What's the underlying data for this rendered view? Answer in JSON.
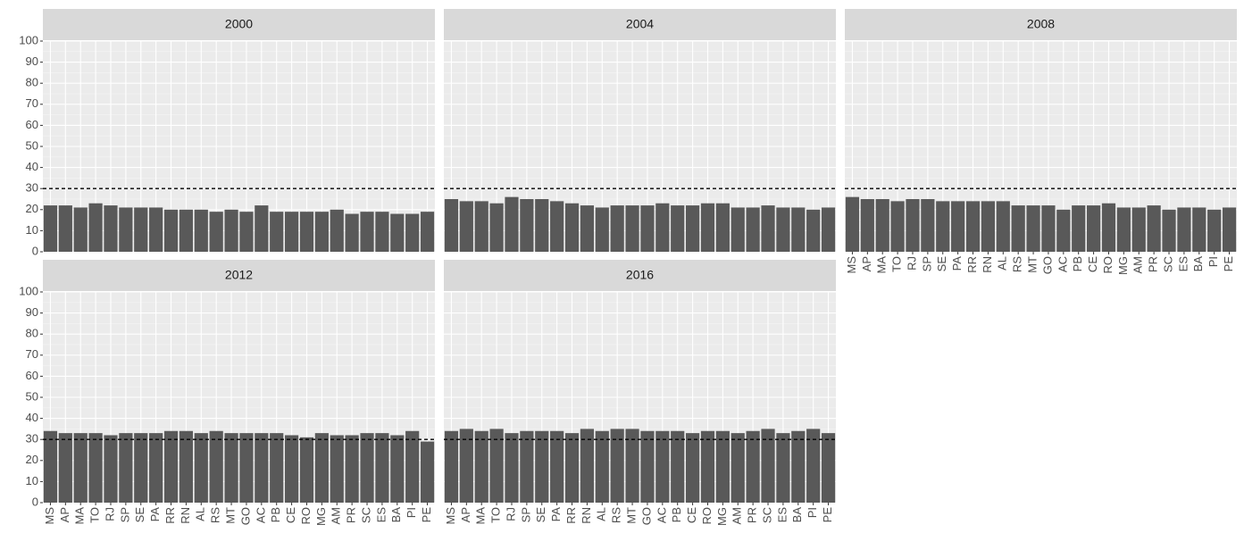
{
  "chart_data": [
    {
      "type": "bar",
      "title": "2000",
      "categories": [
        "MS",
        "AP",
        "MA",
        "TO",
        "RJ",
        "SP",
        "SE",
        "PA",
        "RR",
        "RN",
        "AL",
        "RS",
        "MT",
        "GO",
        "AC",
        "PB",
        "CE",
        "RO",
        "MG",
        "AM",
        "PR",
        "SC",
        "ES",
        "BA",
        "PI",
        "PE"
      ],
      "values": [
        22,
        22,
        21,
        23,
        22,
        21,
        21,
        21,
        20,
        20,
        20,
        19,
        20,
        19,
        22,
        19,
        19,
        19,
        19,
        20,
        18,
        19,
        19,
        18,
        18,
        19
      ],
      "color": "#595959",
      "ylim": [
        0,
        100
      ],
      "yticks": [
        0,
        10,
        20,
        30,
        40,
        50,
        60,
        70,
        80,
        90,
        100
      ],
      "hline": 30,
      "grid": true
    },
    {
      "type": "bar",
      "title": "2004",
      "categories": [
        "MS",
        "AP",
        "MA",
        "TO",
        "RJ",
        "SP",
        "SE",
        "PA",
        "RR",
        "RN",
        "AL",
        "RS",
        "MT",
        "GO",
        "AC",
        "PB",
        "CE",
        "RO",
        "MG",
        "AM",
        "PR",
        "SC",
        "ES",
        "BA",
        "PI",
        "PE"
      ],
      "values": [
        25,
        24,
        24,
        23,
        26,
        25,
        25,
        24,
        23,
        22,
        21,
        22,
        22,
        22,
        23,
        22,
        22,
        23,
        23,
        21,
        21,
        22,
        21,
        21,
        20,
        21
      ],
      "color": "#595959",
      "ylim": [
        0,
        100
      ],
      "yticks": [
        0,
        10,
        20,
        30,
        40,
        50,
        60,
        70,
        80,
        90,
        100
      ],
      "hline": 30,
      "grid": true
    },
    {
      "type": "bar",
      "title": "2008",
      "categories": [
        "MS",
        "AP",
        "MA",
        "TO",
        "RJ",
        "SP",
        "SE",
        "PA",
        "RR",
        "RN",
        "AL",
        "RS",
        "MT",
        "GO",
        "AC",
        "PB",
        "CE",
        "RO",
        "MG",
        "AM",
        "PR",
        "SC",
        "ES",
        "BA",
        "PI",
        "PE"
      ],
      "values": [
        26,
        25,
        25,
        24,
        25,
        25,
        24,
        24,
        24,
        24,
        24,
        22,
        22,
        22,
        20,
        22,
        22,
        23,
        21,
        21,
        22,
        20,
        21,
        21,
        20,
        21
      ],
      "color": "#595959",
      "ylim": [
        0,
        100
      ],
      "yticks": [
        0,
        10,
        20,
        30,
        40,
        50,
        60,
        70,
        80,
        90,
        100
      ],
      "hline": 30,
      "grid": true
    },
    {
      "type": "bar",
      "title": "2012",
      "categories": [
        "MS",
        "AP",
        "MA",
        "TO",
        "RJ",
        "SP",
        "SE",
        "PA",
        "RR",
        "RN",
        "AL",
        "RS",
        "MT",
        "GO",
        "AC",
        "PB",
        "CE",
        "RO",
        "MG",
        "AM",
        "PR",
        "SC",
        "ES",
        "BA",
        "PI",
        "PE"
      ],
      "values": [
        34,
        33,
        33,
        33,
        32,
        33,
        33,
        33,
        34,
        34,
        33,
        34,
        33,
        33,
        33,
        33,
        32,
        31,
        33,
        32,
        32,
        33,
        33,
        32,
        34,
        29
      ],
      "color": "#595959",
      "ylim": [
        0,
        100
      ],
      "yticks": [
        0,
        10,
        20,
        30,
        40,
        50,
        60,
        70,
        80,
        90,
        100
      ],
      "hline": 30,
      "grid": true
    },
    {
      "type": "bar",
      "title": "2016",
      "categories": [
        "MS",
        "AP",
        "MA",
        "TO",
        "RJ",
        "SP",
        "SE",
        "PA",
        "RR",
        "RN",
        "AL",
        "RS",
        "MT",
        "GO",
        "AC",
        "PB",
        "CE",
        "RO",
        "MG",
        "AM",
        "PR",
        "SC",
        "ES",
        "BA",
        "PI",
        "PE"
      ],
      "values": [
        34,
        35,
        34,
        35,
        33,
        34,
        34,
        34,
        33,
        35,
        34,
        35,
        35,
        34,
        34,
        34,
        33,
        34,
        34,
        33,
        34,
        35,
        33,
        34,
        35,
        33
      ],
      "color": "#595959",
      "ylim": [
        0,
        100
      ],
      "yticks": [
        0,
        10,
        20,
        30,
        40,
        50,
        60,
        70,
        80,
        90,
        100
      ],
      "hline": 30,
      "grid": true
    }
  ]
}
